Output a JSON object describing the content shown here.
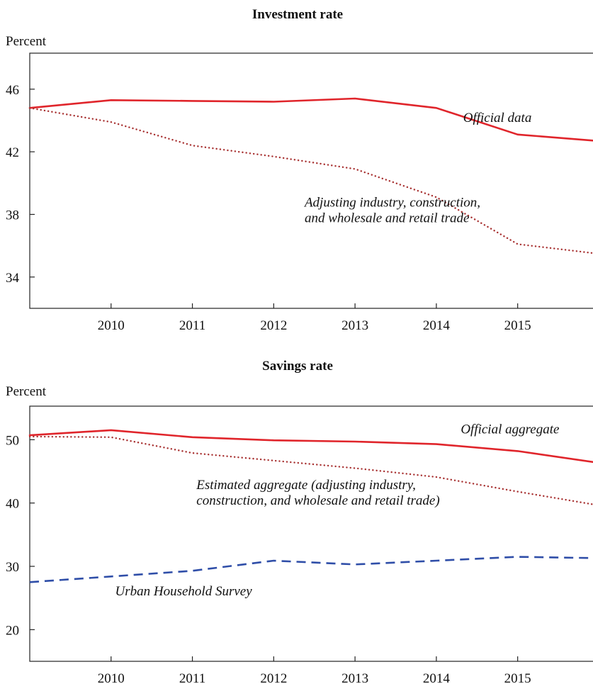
{
  "colors": {
    "official": "#e0252b",
    "adjusted": "#a83232",
    "survey": "#2f4ea8",
    "axis": "#222222"
  },
  "chart_data": [
    {
      "type": "line",
      "title": "Investment rate",
      "ylabel": "Percent",
      "xlim": [
        2009.0,
        2015.97
      ],
      "ylim": [
        32,
        48.3
      ],
      "xticks": [
        2010,
        2011,
        2012,
        2013,
        2014,
        2015
      ],
      "xtick_labels": [
        "2010",
        "2011",
        "2012",
        "2013",
        "2014",
        "2015"
      ],
      "yticks": [
        34,
        38,
        42,
        46
      ],
      "ytick_labels": [
        "34",
        "38",
        "42",
        "46"
      ],
      "grid": false,
      "series": [
        {
          "style": "solid",
          "color_key": "official",
          "points": [
            [
              2009.0,
              44.8
            ],
            [
              2010.0,
              45.3
            ],
            [
              2011.0,
              45.25
            ],
            [
              2012.0,
              45.2
            ],
            [
              2013.0,
              45.4
            ],
            [
              2014.0,
              44.8
            ],
            [
              2015.0,
              43.1
            ],
            [
              2015.97,
              42.7
            ]
          ]
        },
        {
          "style": "dotted",
          "color_key": "adjusted",
          "points": [
            [
              2009.0,
              44.8
            ],
            [
              2010.0,
              43.9
            ],
            [
              2011.0,
              42.4
            ],
            [
              2012.0,
              41.7
            ],
            [
              2013.0,
              40.9
            ],
            [
              2014.0,
              39.1
            ],
            [
              2015.0,
              36.1
            ],
            [
              2015.97,
              35.5
            ]
          ]
        }
      ],
      "annotations": [
        {
          "text_lines": [
            "Official data"
          ],
          "x": 2014.33,
          "y": 43.9
        },
        {
          "text_lines": [
            "Adjusting industry, construction,",
            "and wholesale and retail trade"
          ],
          "x": 2012.38,
          "y": 38.5
        }
      ]
    },
    {
      "type": "line",
      "title": "Savings rate",
      "ylabel": "Percent",
      "xlim": [
        2009.0,
        2015.97
      ],
      "ylim": [
        15,
        55.3
      ],
      "xticks": [
        2010,
        2011,
        2012,
        2013,
        2014,
        2015
      ],
      "xtick_labels": [
        "2010",
        "2011",
        "2012",
        "2013",
        "2014",
        "2015"
      ],
      "yticks": [
        20,
        30,
        40,
        50
      ],
      "ytick_labels": [
        "20",
        "30",
        "40",
        "50"
      ],
      "grid": false,
      "series": [
        {
          "style": "solid",
          "color_key": "official",
          "points": [
            [
              2009.0,
              50.7
            ],
            [
              2010.0,
              51.5
            ],
            [
              2011.0,
              50.4
            ],
            [
              2012.0,
              49.9
            ],
            [
              2013.0,
              49.7
            ],
            [
              2014.0,
              49.3
            ],
            [
              2015.0,
              48.2
            ],
            [
              2015.97,
              46.4
            ]
          ]
        },
        {
          "style": "dotted",
          "color_key": "adjusted",
          "points": [
            [
              2009.0,
              50.5
            ],
            [
              2010.0,
              50.4
            ],
            [
              2011.0,
              47.9
            ],
            [
              2012.0,
              46.7
            ],
            [
              2013.0,
              45.5
            ],
            [
              2014.0,
              44.1
            ],
            [
              2015.0,
              41.8
            ],
            [
              2015.97,
              39.7
            ]
          ]
        },
        {
          "style": "dashed",
          "color_key": "survey",
          "points": [
            [
              2009.0,
              27.5
            ],
            [
              2010.0,
              28.4
            ],
            [
              2011.0,
              29.3
            ],
            [
              2012.0,
              30.9
            ],
            [
              2013.0,
              30.3
            ],
            [
              2014.0,
              30.9
            ],
            [
              2015.0,
              31.5
            ],
            [
              2015.97,
              31.3
            ]
          ]
        }
      ],
      "annotations": [
        {
          "text_lines": [
            "Official aggregate"
          ],
          "x": 2014.3,
          "y": 51.0
        },
        {
          "text_lines": [
            "Estimated aggregate (adjusting industry,",
            "construction, and wholesale and retail trade)"
          ],
          "x": 2011.05,
          "y": 42.2
        },
        {
          "text_lines": [
            "Urban Household Survey"
          ],
          "x": 2010.05,
          "y": 25.4
        }
      ]
    }
  ]
}
